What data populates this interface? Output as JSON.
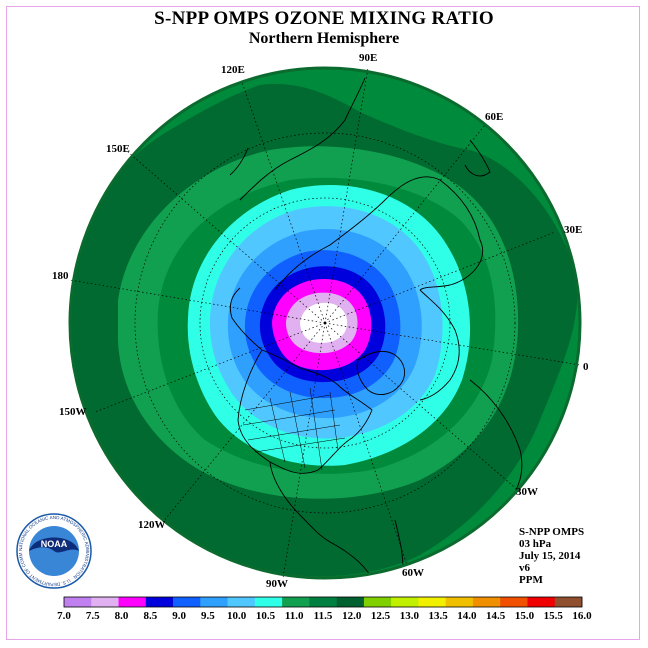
{
  "title": "S-NPP OMPS OZONE MIXING RATIO",
  "subtitle": "Northern Hemisphere",
  "longitude_labels": [
    "0",
    "30E",
    "60E",
    "90E",
    "120E",
    "150E",
    "180",
    "150W",
    "120W",
    "90W",
    "60W",
    "30W"
  ],
  "info": {
    "instrument": "S-NPP OMPS",
    "pressure": "03 hPa",
    "date": "July 15, 2014",
    "version": "v6",
    "units": "PPM"
  },
  "logo_text": "NATIONAL OCEANIC AND ATMOSPHERIC ADMINISTRATION · U.S. DEPARTMENT OF COMMERCE",
  "logo_label": "NOAA",
  "colorbar": {
    "ticks": [
      "7.0",
      "7.5",
      "8.0",
      "8.5",
      "9.0",
      "9.5",
      "10.0",
      "10.5",
      "11.0",
      "11.5",
      "12.0",
      "12.5",
      "13.0",
      "13.5",
      "14.0",
      "14.5",
      "15.0",
      "15.5",
      "16.0"
    ],
    "colors": [
      "#c080f0",
      "#e0b0f0",
      "#ff00ff",
      "#0000dd",
      "#1060ff",
      "#30a0ff",
      "#50c8ff",
      "#30ffe8",
      "#10a050",
      "#008040",
      "#006030",
      "#80d000",
      "#c0f000",
      "#f0f000",
      "#f0c000",
      "#f09000",
      "#f05000",
      "#f00000",
      "#905030"
    ]
  },
  "map_colors": {
    "background_dark": "#006a30",
    "background_mid": "#0a8f3c"
  }
}
